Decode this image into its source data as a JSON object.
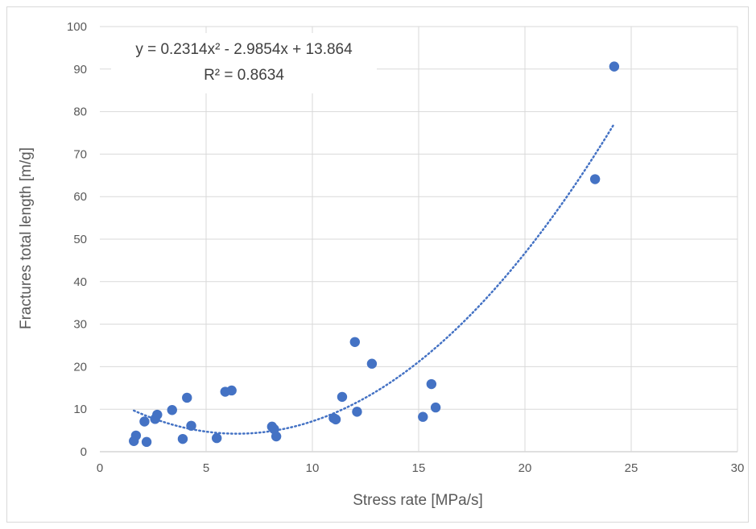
{
  "chart_data": {
    "type": "scatter",
    "xlabel": "Stress rate [MPa/s]",
    "ylabel": "Fractures total length [m/g]",
    "xlim": [
      0,
      30
    ],
    "ylim": [
      0,
      100
    ],
    "x_ticks": [
      "0",
      "5",
      "10",
      "15",
      "20",
      "25",
      "30"
    ],
    "y_ticks": [
      "0",
      "10",
      "20",
      "30",
      "40",
      "50",
      "60",
      "70",
      "80",
      "90",
      "100"
    ],
    "grid": true,
    "legend": "none",
    "marker_color": "#4472C4",
    "trendline": {
      "type": "polynomial",
      "order": 2,
      "coefficients": [
        0.2314,
        -2.9854,
        13.864
      ],
      "x_range": [
        1.6,
        24.2
      ],
      "style": "dotted",
      "color": "#4472C4",
      "equation_label": "y = 0.2314x² - 2.9854x + 13.864",
      "r2_label": "R² = 0.8634"
    },
    "series": [
      {
        "points": [
          [
            1.6,
            2.5
          ],
          [
            1.7,
            3.8
          ],
          [
            2.1,
            7.1
          ],
          [
            2.2,
            2.3
          ],
          [
            2.6,
            7.7
          ],
          [
            2.7,
            8.7
          ],
          [
            3.4,
            9.8
          ],
          [
            3.9,
            3.0
          ],
          [
            4.1,
            12.7
          ],
          [
            4.3,
            6.1
          ],
          [
            5.5,
            3.2
          ],
          [
            5.9,
            14.1
          ],
          [
            6.2,
            14.4
          ],
          [
            8.1,
            5.9
          ],
          [
            8.2,
            5.3
          ],
          [
            8.3,
            3.6
          ],
          [
            11.0,
            7.9
          ],
          [
            11.1,
            7.6
          ],
          [
            11.4,
            12.9
          ],
          [
            12.0,
            25.8
          ],
          [
            12.1,
            9.4
          ],
          [
            12.8,
            20.7
          ],
          [
            15.2,
            8.2
          ],
          [
            15.6,
            15.9
          ],
          [
            15.8,
            10.4
          ],
          [
            23.3,
            64.1
          ],
          [
            24.2,
            90.6
          ]
        ]
      }
    ]
  }
}
